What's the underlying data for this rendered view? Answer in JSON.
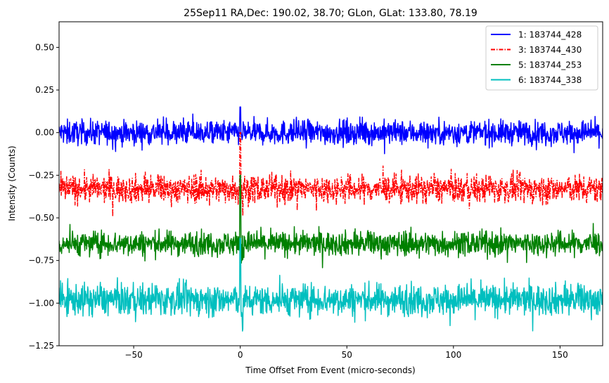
{
  "chart_data": {
    "type": "line",
    "title": "25Sep11 RA,Dec:  190.02,  38.70; GLon, GLat:  133.80,  78.19",
    "xlabel": "Time Offset From Event (micro-seconds)",
    "ylabel": "Intensity (Counts)",
    "xlim": [
      -85,
      170
    ],
    "ylim": [
      -1.25,
      0.65
    ],
    "xticks": [
      -50,
      0,
      50,
      100,
      150
    ],
    "xtick_labels": [
      "−50",
      "0",
      "50",
      "100",
      "150"
    ],
    "yticks": [
      0.5,
      0.25,
      0.0,
      -0.25,
      -0.5,
      -0.75,
      -1.0,
      -1.25
    ],
    "ytick_labels": [
      "0.50",
      "0.25",
      "0.00",
      "−0.25",
      "−0.50",
      "−0.75",
      "−1.00",
      "−1.25"
    ],
    "grid": false,
    "legend_position": "top-right",
    "series": [
      {
        "name": "1: 183744_428",
        "color": "#0000ff",
        "style": "solid",
        "baseline": 0.0,
        "noise_amplitude": 0.035,
        "spike_at": 0,
        "spike_peak": 0.15,
        "spike_min": -0.05
      },
      {
        "name": "3: 183744_430",
        "color": "#ff0000",
        "style": "dashdot",
        "baseline": -0.33,
        "noise_amplitude": 0.04,
        "spike_at": 0,
        "spike_peak": -0.0,
        "spike_min": -0.5
      },
      {
        "name": "5: 183744_253",
        "color": "#008000",
        "style": "solid",
        "baseline": -0.65,
        "noise_amplitude": 0.035,
        "spike_at": 0,
        "spike_peak": -0.25,
        "spike_min": -0.78
      },
      {
        "name": "6: 183744_338",
        "color": "#00bfbf",
        "style": "solid",
        "baseline": -0.98,
        "noise_amplitude": 0.045,
        "spike_at": 0,
        "spike_peak": -0.62,
        "spike_min": -1.17
      }
    ]
  }
}
